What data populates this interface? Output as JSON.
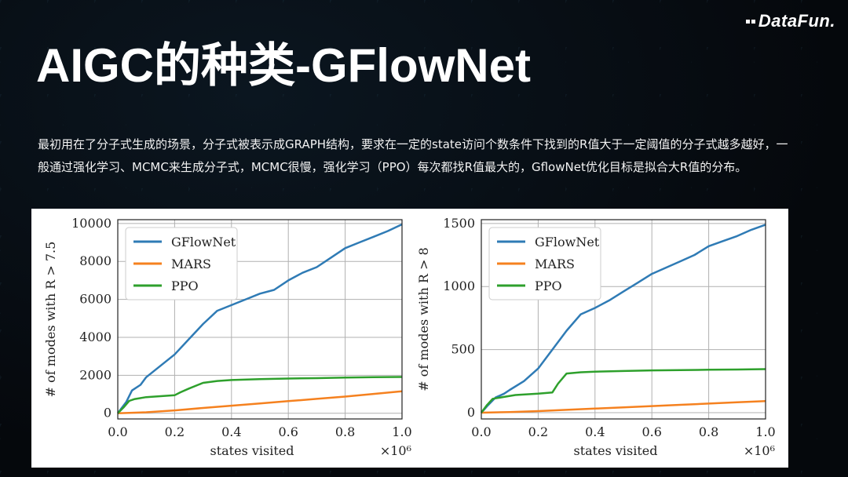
{
  "brand": {
    "logo_text": "DataFun."
  },
  "slide": {
    "title": "AIGC的种类-GFlowNet",
    "description": "最初用在了分子式生成的场景，分子式被表示成GRAPH结构，要求在一定的state访问个数条件下找到的R值大于一定阈值的分子式越多越好，一般通过强化学习、MCMC来生成分子式，MCMC很慢，强化学习（PPO）每次都找R值最大的，GflowNet优化目标是拟合大R值的分布。"
  },
  "colors": {
    "GFlowNet": "#2f7bb5",
    "MARS": "#f5811f",
    "PPO": "#2ea02c"
  },
  "chart_data": [
    {
      "type": "line",
      "xlabel": "states visited",
      "x_multiplier_label": "×10⁶",
      "ylabel": "# of modes with R > 7.5",
      "xlim": [
        0,
        1.0
      ],
      "ylim": [
        -300,
        10200
      ],
      "xticks": [
        "0.0",
        "0.2",
        "0.4",
        "0.6",
        "0.8",
        "1.0"
      ],
      "yticks": [
        "0",
        "2000",
        "4000",
        "6000",
        "8000",
        "10000"
      ],
      "grid": true,
      "legend_position": "top-left",
      "series": [
        {
          "name": "GFlowNet",
          "x": [
            0,
            0.01,
            0.03,
            0.05,
            0.08,
            0.1,
            0.15,
            0.2,
            0.25,
            0.3,
            0.35,
            0.4,
            0.45,
            0.5,
            0.55,
            0.6,
            0.65,
            0.7,
            0.75,
            0.8,
            0.85,
            0.9,
            0.95,
            1.0
          ],
          "y": [
            0,
            200,
            600,
            1200,
            1500,
            1900,
            2500,
            3100,
            3900,
            4700,
            5400,
            5700,
            6000,
            6300,
            6500,
            7000,
            7400,
            7700,
            8200,
            8700,
            9000,
            9300,
            9600,
            9950
          ]
        },
        {
          "name": "MARS",
          "x": [
            0,
            0.1,
            0.2,
            0.3,
            0.4,
            0.5,
            0.6,
            0.7,
            0.8,
            0.9,
            1.0
          ],
          "y": [
            0,
            50,
            150,
            280,
            400,
            520,
            640,
            760,
            880,
            1020,
            1160
          ]
        },
        {
          "name": "PPO",
          "x": [
            0,
            0.02,
            0.04,
            0.06,
            0.1,
            0.15,
            0.2,
            0.22,
            0.25,
            0.3,
            0.35,
            0.4,
            0.5,
            0.6,
            0.7,
            0.8,
            0.9,
            1.0
          ],
          "y": [
            0,
            300,
            650,
            750,
            850,
            900,
            950,
            1100,
            1300,
            1600,
            1700,
            1750,
            1800,
            1830,
            1850,
            1880,
            1900,
            1910
          ]
        }
      ]
    },
    {
      "type": "line",
      "xlabel": "states visited",
      "x_multiplier_label": "×10⁶",
      "ylabel": "# of modes with R > 8",
      "xlim": [
        0,
        1.0
      ],
      "ylim": [
        -50,
        1530
      ],
      "xticks": [
        "0.0",
        "0.2",
        "0.4",
        "0.6",
        "0.8",
        "1.0"
      ],
      "yticks": [
        "0",
        "500",
        "1000",
        "1500"
      ],
      "grid": true,
      "legend_position": "top-left",
      "series": [
        {
          "name": "GFlowNet",
          "x": [
            0,
            0.02,
            0.05,
            0.08,
            0.1,
            0.15,
            0.2,
            0.25,
            0.3,
            0.35,
            0.4,
            0.45,
            0.5,
            0.55,
            0.6,
            0.65,
            0.7,
            0.75,
            0.8,
            0.85,
            0.9,
            0.95,
            1.0
          ],
          "y": [
            0,
            50,
            120,
            150,
            180,
            250,
            350,
            500,
            650,
            780,
            830,
            890,
            960,
            1030,
            1100,
            1150,
            1200,
            1250,
            1320,
            1360,
            1400,
            1450,
            1490
          ]
        },
        {
          "name": "MARS",
          "x": [
            0,
            0.1,
            0.2,
            0.3,
            0.4,
            0.5,
            0.6,
            0.7,
            0.8,
            0.9,
            1.0
          ],
          "y": [
            0,
            5,
            12,
            22,
            32,
            42,
            52,
            62,
            72,
            82,
            92
          ]
        },
        {
          "name": "PPO",
          "x": [
            0,
            0.02,
            0.04,
            0.08,
            0.12,
            0.2,
            0.25,
            0.27,
            0.3,
            0.35,
            0.4,
            0.5,
            0.6,
            0.7,
            0.8,
            0.9,
            1.0
          ],
          "y": [
            0,
            60,
            110,
            125,
            140,
            150,
            160,
            230,
            310,
            320,
            325,
            330,
            335,
            337,
            340,
            342,
            345
          ]
        }
      ]
    }
  ]
}
